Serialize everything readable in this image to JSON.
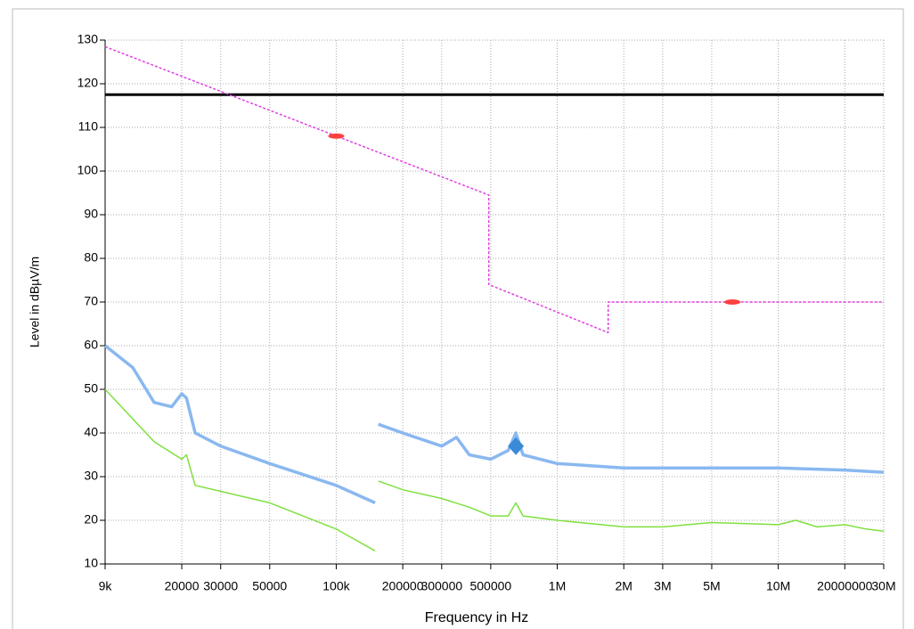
{
  "chart_data": {
    "type": "line",
    "xlabel": "Frequency in Hz",
    "ylabel": "Level in dBµV/m",
    "xscale": "log",
    "grid": true,
    "xlim": [
      9000,
      30000000
    ],
    "ylim": [
      10,
      130
    ],
    "xticks": [
      {
        "value": 9000,
        "label": "9k"
      },
      20000,
      30000,
      50000,
      {
        "value": 100000,
        "label": "100k"
      },
      200000,
      300000,
      500000,
      {
        "value": 1000000,
        "label": "1M"
      },
      {
        "value": 2000000,
        "label": "2M"
      },
      {
        "value": 3000000,
        "label": "3M"
      },
      {
        "value": 5000000,
        "label": "5M"
      },
      {
        "value": 10000000,
        "label": "10M"
      },
      20000000,
      {
        "value": 30000000,
        "label": "30M"
      }
    ],
    "xtick_labels_override": null,
    "yticks": [
      10,
      20,
      30,
      40,
      50,
      60,
      70,
      80,
      90,
      100,
      110,
      120,
      130
    ],
    "series": [
      {
        "color": "#000000",
        "width": 3,
        "dash": "none",
        "x": [
          9000,
          30000000
        ],
        "values": [
          117.5,
          117.5
        ]
      },
      {
        "color": "#e040e0",
        "width": 1.5,
        "dash": "3 2",
        "x": [
          9000,
          490000,
          490000,
          1700000,
          1700000,
          30000000
        ],
        "values": [
          128.5,
          94.5,
          74,
          63,
          70,
          70
        ]
      },
      {
        "color": "#8ab8f0",
        "width": 3.5,
        "dash": "none",
        "x": [
          9000,
          12000,
          15000,
          18000,
          20000,
          21000,
          23000,
          30000,
          50000,
          100000,
          150000,
          152000,
          155000,
          200000,
          300000,
          350000,
          400000,
          500000,
          600000,
          650000,
          700000,
          1000000,
          2000000,
          5000000,
          10000000,
          20000000,
          30000000
        ],
        "values": [
          60,
          55,
          47,
          46,
          49,
          48,
          40,
          37,
          33,
          28,
          24,
          null,
          42,
          40,
          37,
          39,
          35,
          34,
          36,
          40,
          35,
          33,
          32,
          32,
          32,
          31.5,
          31
        ]
      },
      {
        "color": "#80e040",
        "width": 1.5,
        "dash": "none",
        "x": [
          9000,
          15000,
          20000,
          21000,
          23000,
          50000,
          100000,
          150000,
          152000,
          155000,
          200000,
          300000,
          400000,
          500000,
          600000,
          650000,
          700000,
          1000000,
          2000000,
          3000000,
          5000000,
          10000000,
          12000000,
          15000000,
          20000000,
          25000000,
          30000000
        ],
        "values": [
          50,
          38,
          34,
          35,
          28,
          24,
          18,
          13,
          null,
          29,
          27,
          25,
          23,
          21,
          21,
          24,
          21,
          20,
          18.5,
          18.5,
          19.5,
          19,
          20,
          18.5,
          19,
          18,
          17.5
        ]
      },
      {
        "color": "#ff4040",
        "marker": "dot",
        "x": [
          100000,
          6200000
        ],
        "values": [
          108,
          70
        ]
      },
      {
        "color": "#3a8ad8",
        "marker": "diamond",
        "x": [
          650000
        ],
        "values": [
          37
        ]
      }
    ]
  }
}
